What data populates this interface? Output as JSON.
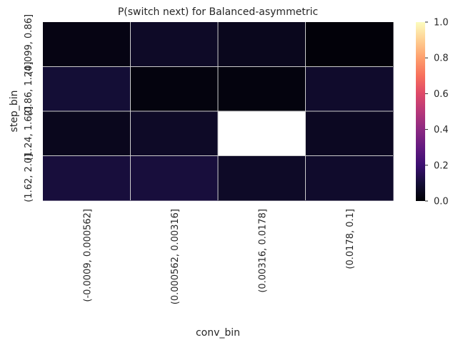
{
  "chart_data": {
    "type": "heatmap",
    "title": "P(switch next) for Balanced-asymmetric",
    "xlabel": "conv_bin",
    "ylabel": "step_bin",
    "x_categories": [
      "(-0.0009, 0.000562]",
      "(0.000562, 0.00316]",
      "(0.00316, 0.0178]",
      "(0.0178, 0.1]"
    ],
    "y_categories": [
      "(0.099, 0.86]",
      "(0.86, 1.24]",
      "(1.24, 1.62]",
      "(1.62, 2.0]"
    ],
    "values": [
      [
        0.03,
        0.07,
        0.05,
        0.01
      ],
      [
        0.1,
        0.02,
        0.02,
        0.08
      ],
      [
        0.05,
        0.07,
        null,
        0.06
      ],
      [
        0.11,
        0.11,
        0.07,
        0.08
      ]
    ],
    "colormap": "magma",
    "vmin": 0.0,
    "vmax": 1.0,
    "colorbar_ticks": [
      "0.0",
      "0.2",
      "0.4",
      "0.6",
      "0.8",
      "1.0"
    ],
    "grid": true
  }
}
